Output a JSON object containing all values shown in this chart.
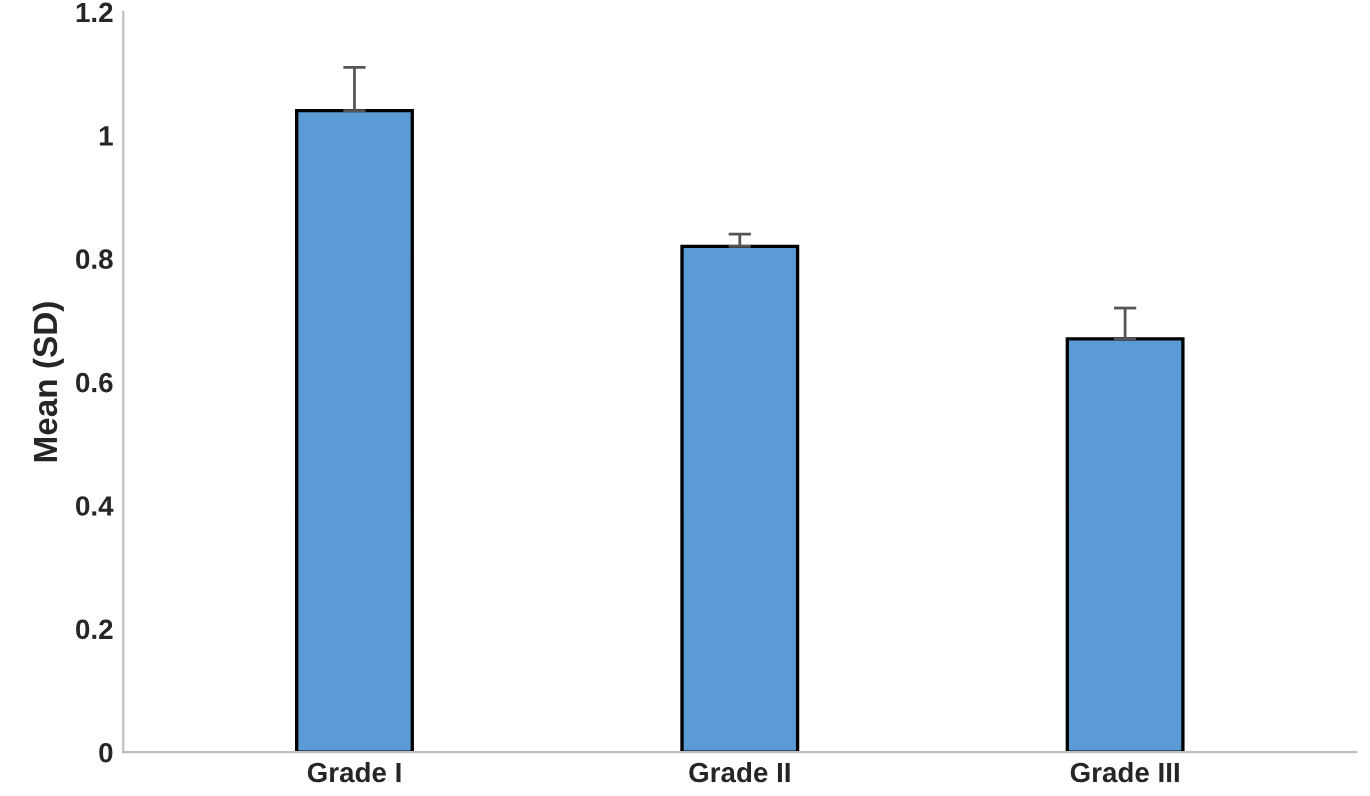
{
  "chart_data": {
    "type": "bar",
    "ylabel": "Mean (SD)",
    "categories": [
      "Grade I",
      "Grade II",
      "Grade III"
    ],
    "values": [
      1.04,
      0.82,
      0.67
    ],
    "errors": [
      [
        1.04,
        1.11
      ],
      [
        0.82,
        0.84
      ],
      [
        0.67,
        0.72
      ]
    ],
    "color": "#5b9bd5",
    "ylim": [
      0,
      1.2
    ],
    "yticks": [
      0,
      0.2,
      0.4,
      0.6,
      0.8,
      1,
      1.2
    ],
    "grid": false
  }
}
